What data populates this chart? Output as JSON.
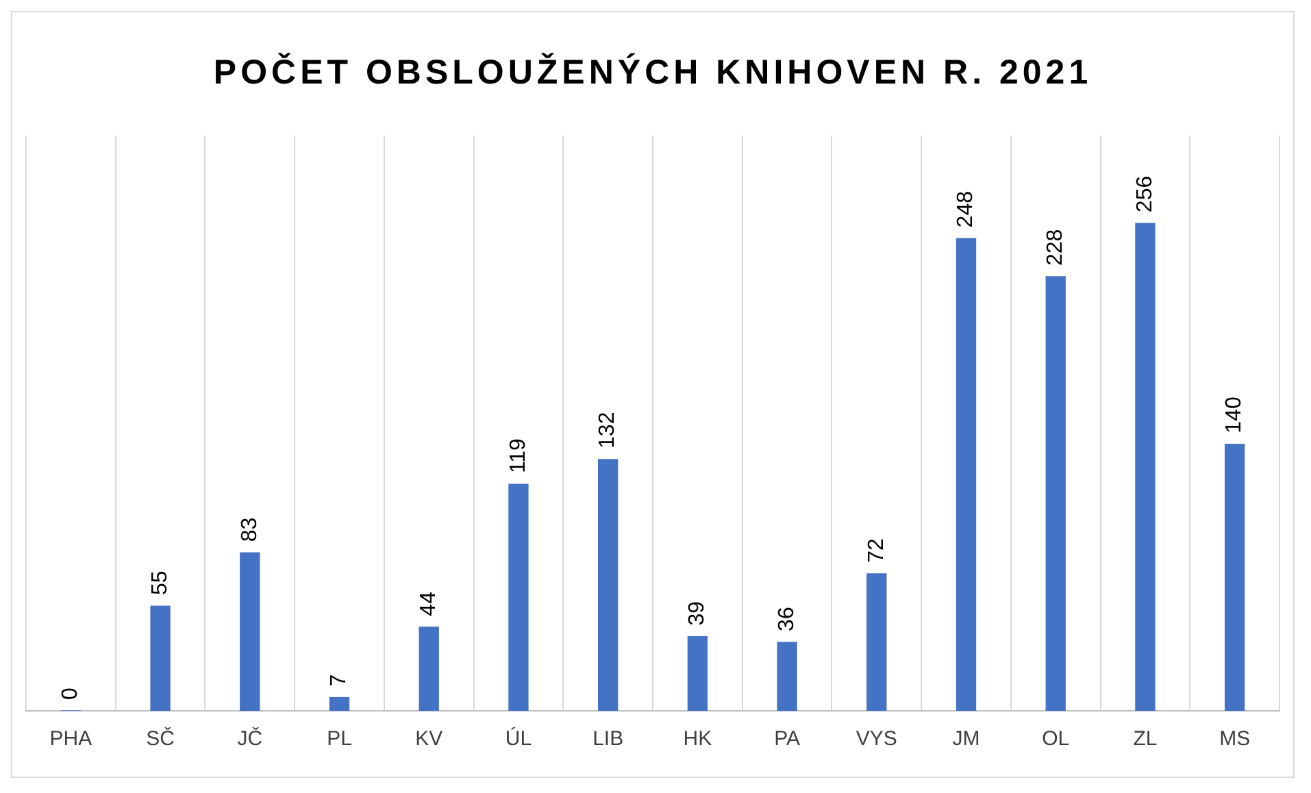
{
  "chart_data": {
    "type": "bar",
    "title": "POČET OBSLOUŽENÝCH KNIHOVEN R. 2021",
    "categories": [
      "PHA",
      "SČ",
      "JČ",
      "PL",
      "KV",
      "ÚL",
      "LIB",
      "HK",
      "PA",
      "VYS",
      "JM",
      "OL",
      "ZL",
      "MS"
    ],
    "values": [
      0,
      55,
      83,
      7,
      44,
      119,
      132,
      39,
      36,
      72,
      248,
      228,
      256,
      140
    ],
    "color": "#4472c4",
    "data_labels": true,
    "grid": "x",
    "legend": false
  }
}
